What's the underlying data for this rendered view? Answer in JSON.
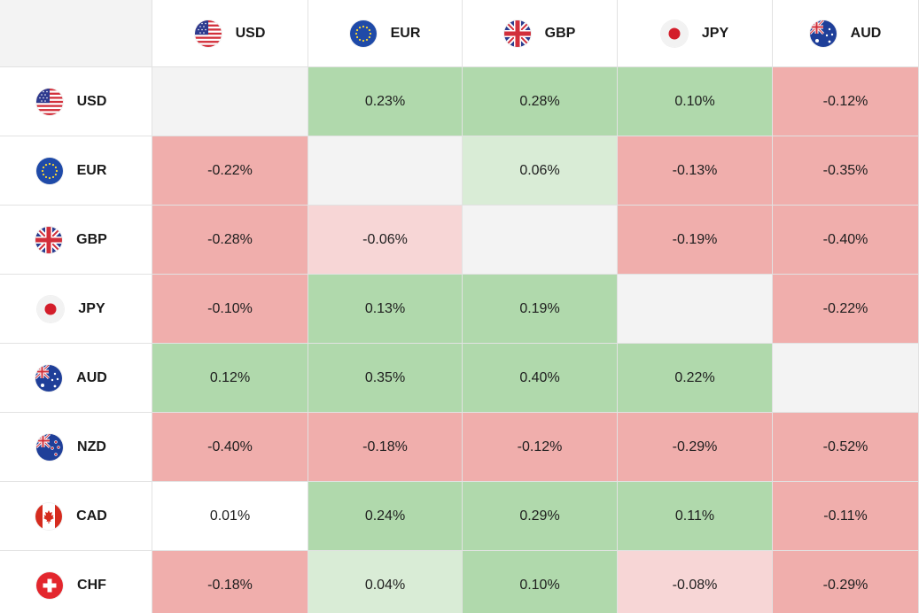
{
  "columns": [
    {
      "code": "USD",
      "flag": "us-flag-icon"
    },
    {
      "code": "EUR",
      "flag": "eu-flag-icon"
    },
    {
      "code": "GBP",
      "flag": "uk-flag-icon"
    },
    {
      "code": "JPY",
      "flag": "japan-flag-icon"
    },
    {
      "code": "AUD",
      "flag": "australia-flag-icon"
    }
  ],
  "rows": [
    {
      "code": "USD",
      "flag": "us-flag-icon",
      "cells": [
        {
          "value": "",
          "tone": "self"
        },
        {
          "value": "0.23%",
          "tone": "pos-strong"
        },
        {
          "value": "0.28%",
          "tone": "pos-strong"
        },
        {
          "value": "0.10%",
          "tone": "pos-strong"
        },
        {
          "value": "-0.12%",
          "tone": "neg-strong"
        }
      ]
    },
    {
      "code": "EUR",
      "flag": "eu-flag-icon",
      "cells": [
        {
          "value": "-0.22%",
          "tone": "neg-strong"
        },
        {
          "value": "",
          "tone": "self"
        },
        {
          "value": "0.06%",
          "tone": "pos-weak"
        },
        {
          "value": "-0.13%",
          "tone": "neg-strong"
        },
        {
          "value": "-0.35%",
          "tone": "neg-strong"
        }
      ]
    },
    {
      "code": "GBP",
      "flag": "uk-flag-icon",
      "cells": [
        {
          "value": "-0.28%",
          "tone": "neg-strong"
        },
        {
          "value": "-0.06%",
          "tone": "neg-weak"
        },
        {
          "value": "",
          "tone": "self"
        },
        {
          "value": "-0.19%",
          "tone": "neg-strong"
        },
        {
          "value": "-0.40%",
          "tone": "neg-strong"
        }
      ]
    },
    {
      "code": "JPY",
      "flag": "japan-flag-icon",
      "cells": [
        {
          "value": "-0.10%",
          "tone": "neg-strong"
        },
        {
          "value": "0.13%",
          "tone": "pos-strong"
        },
        {
          "value": "0.19%",
          "tone": "pos-strong"
        },
        {
          "value": "",
          "tone": "self"
        },
        {
          "value": "-0.22%",
          "tone": "neg-strong"
        }
      ]
    },
    {
      "code": "AUD",
      "flag": "australia-flag-icon",
      "cells": [
        {
          "value": "0.12%",
          "tone": "pos-strong"
        },
        {
          "value": "0.35%",
          "tone": "pos-strong"
        },
        {
          "value": "0.40%",
          "tone": "pos-strong"
        },
        {
          "value": "0.22%",
          "tone": "pos-strong"
        },
        {
          "value": "",
          "tone": "self"
        }
      ]
    },
    {
      "code": "NZD",
      "flag": "new-zealand-flag-icon",
      "cells": [
        {
          "value": "-0.40%",
          "tone": "neg-strong"
        },
        {
          "value": "-0.18%",
          "tone": "neg-strong"
        },
        {
          "value": "-0.12%",
          "tone": "neg-strong"
        },
        {
          "value": "-0.29%",
          "tone": "neg-strong"
        },
        {
          "value": "-0.52%",
          "tone": "neg-strong"
        }
      ]
    },
    {
      "code": "CAD",
      "flag": "canada-flag-icon",
      "cells": [
        {
          "value": "0.01%",
          "tone": "neutral"
        },
        {
          "value": "0.24%",
          "tone": "pos-strong"
        },
        {
          "value": "0.29%",
          "tone": "pos-strong"
        },
        {
          "value": "0.11%",
          "tone": "pos-strong"
        },
        {
          "value": "-0.11%",
          "tone": "neg-strong"
        }
      ]
    },
    {
      "code": "CHF",
      "flag": "switzerland-flag-icon",
      "cells": [
        {
          "value": "-0.18%",
          "tone": "neg-strong"
        },
        {
          "value": "0.04%",
          "tone": "pos-weak"
        },
        {
          "value": "0.10%",
          "tone": "pos-strong"
        },
        {
          "value": "-0.08%",
          "tone": "neg-weak"
        },
        {
          "value": "-0.29%",
          "tone": "neg-strong"
        }
      ]
    }
  ],
  "colors": {
    "pos_strong": "#b0d9ac",
    "pos_weak": "#d9ecd6",
    "neg_strong": "#f0aeac",
    "neg_weak": "#f7d6d6",
    "self": "#f3f3f3",
    "neutral": "#ffffff"
  }
}
